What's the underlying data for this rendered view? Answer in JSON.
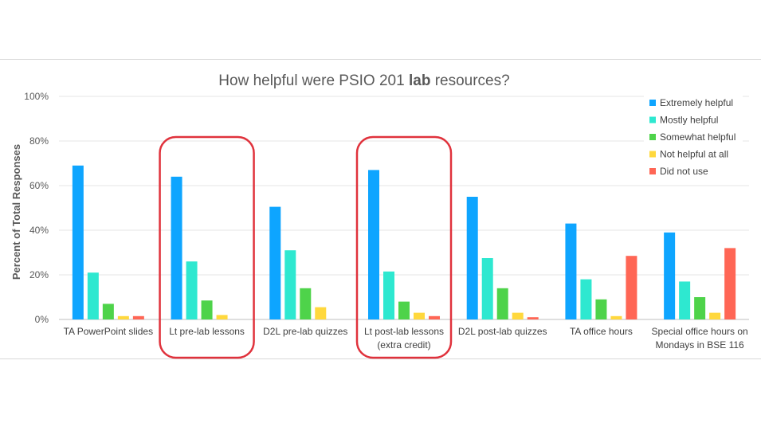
{
  "chart_data": {
    "type": "bar",
    "title_prefix": "How helpful were PSIO 201 ",
    "title_bold": "lab",
    "title_suffix": " resources?",
    "ylabel": "Percent of Total Responses",
    "xlabel": "",
    "ylim": [
      0,
      100
    ],
    "yticks": [
      "0%",
      "20%",
      "40%",
      "60%",
      "80%",
      "100%"
    ],
    "grid": true,
    "legend_position": "top-right",
    "categories": [
      [
        "TA PowerPoint slides"
      ],
      [
        "Lt pre-lab lessons"
      ],
      [
        "D2L pre-lab quizzes"
      ],
      [
        "Lt post-lab lessons",
        "(extra credit)"
      ],
      [
        "D2L post-lab quizzes"
      ],
      [
        "TA office hours"
      ],
      [
        "Special office hours on",
        "Mondays in BSE 116"
      ]
    ],
    "highlighted_categories": [
      1,
      3
    ],
    "highlight_color": "#e0323c",
    "series": [
      {
        "name": "Extremely helpful",
        "color": "#0ea5ff",
        "values": [
          69,
          64,
          50.5,
          67,
          55,
          43,
          39
        ]
      },
      {
        "name": "Mostly helpful",
        "color": "#2ee8d0",
        "values": [
          21,
          26,
          31,
          21.5,
          27.5,
          18,
          17
        ]
      },
      {
        "name": "Somewhat helpful",
        "color": "#4ed34a",
        "values": [
          7,
          8.5,
          14,
          8,
          14,
          9,
          10
        ]
      },
      {
        "name": "Not helpful at all",
        "color": "#ffd83d",
        "values": [
          1.5,
          2,
          5.5,
          3,
          3,
          1.5,
          3
        ]
      },
      {
        "name": "Did not use",
        "color": "#ff6655",
        "values": [
          1.5,
          0,
          0,
          1.5,
          1,
          28.5,
          32
        ]
      }
    ]
  }
}
